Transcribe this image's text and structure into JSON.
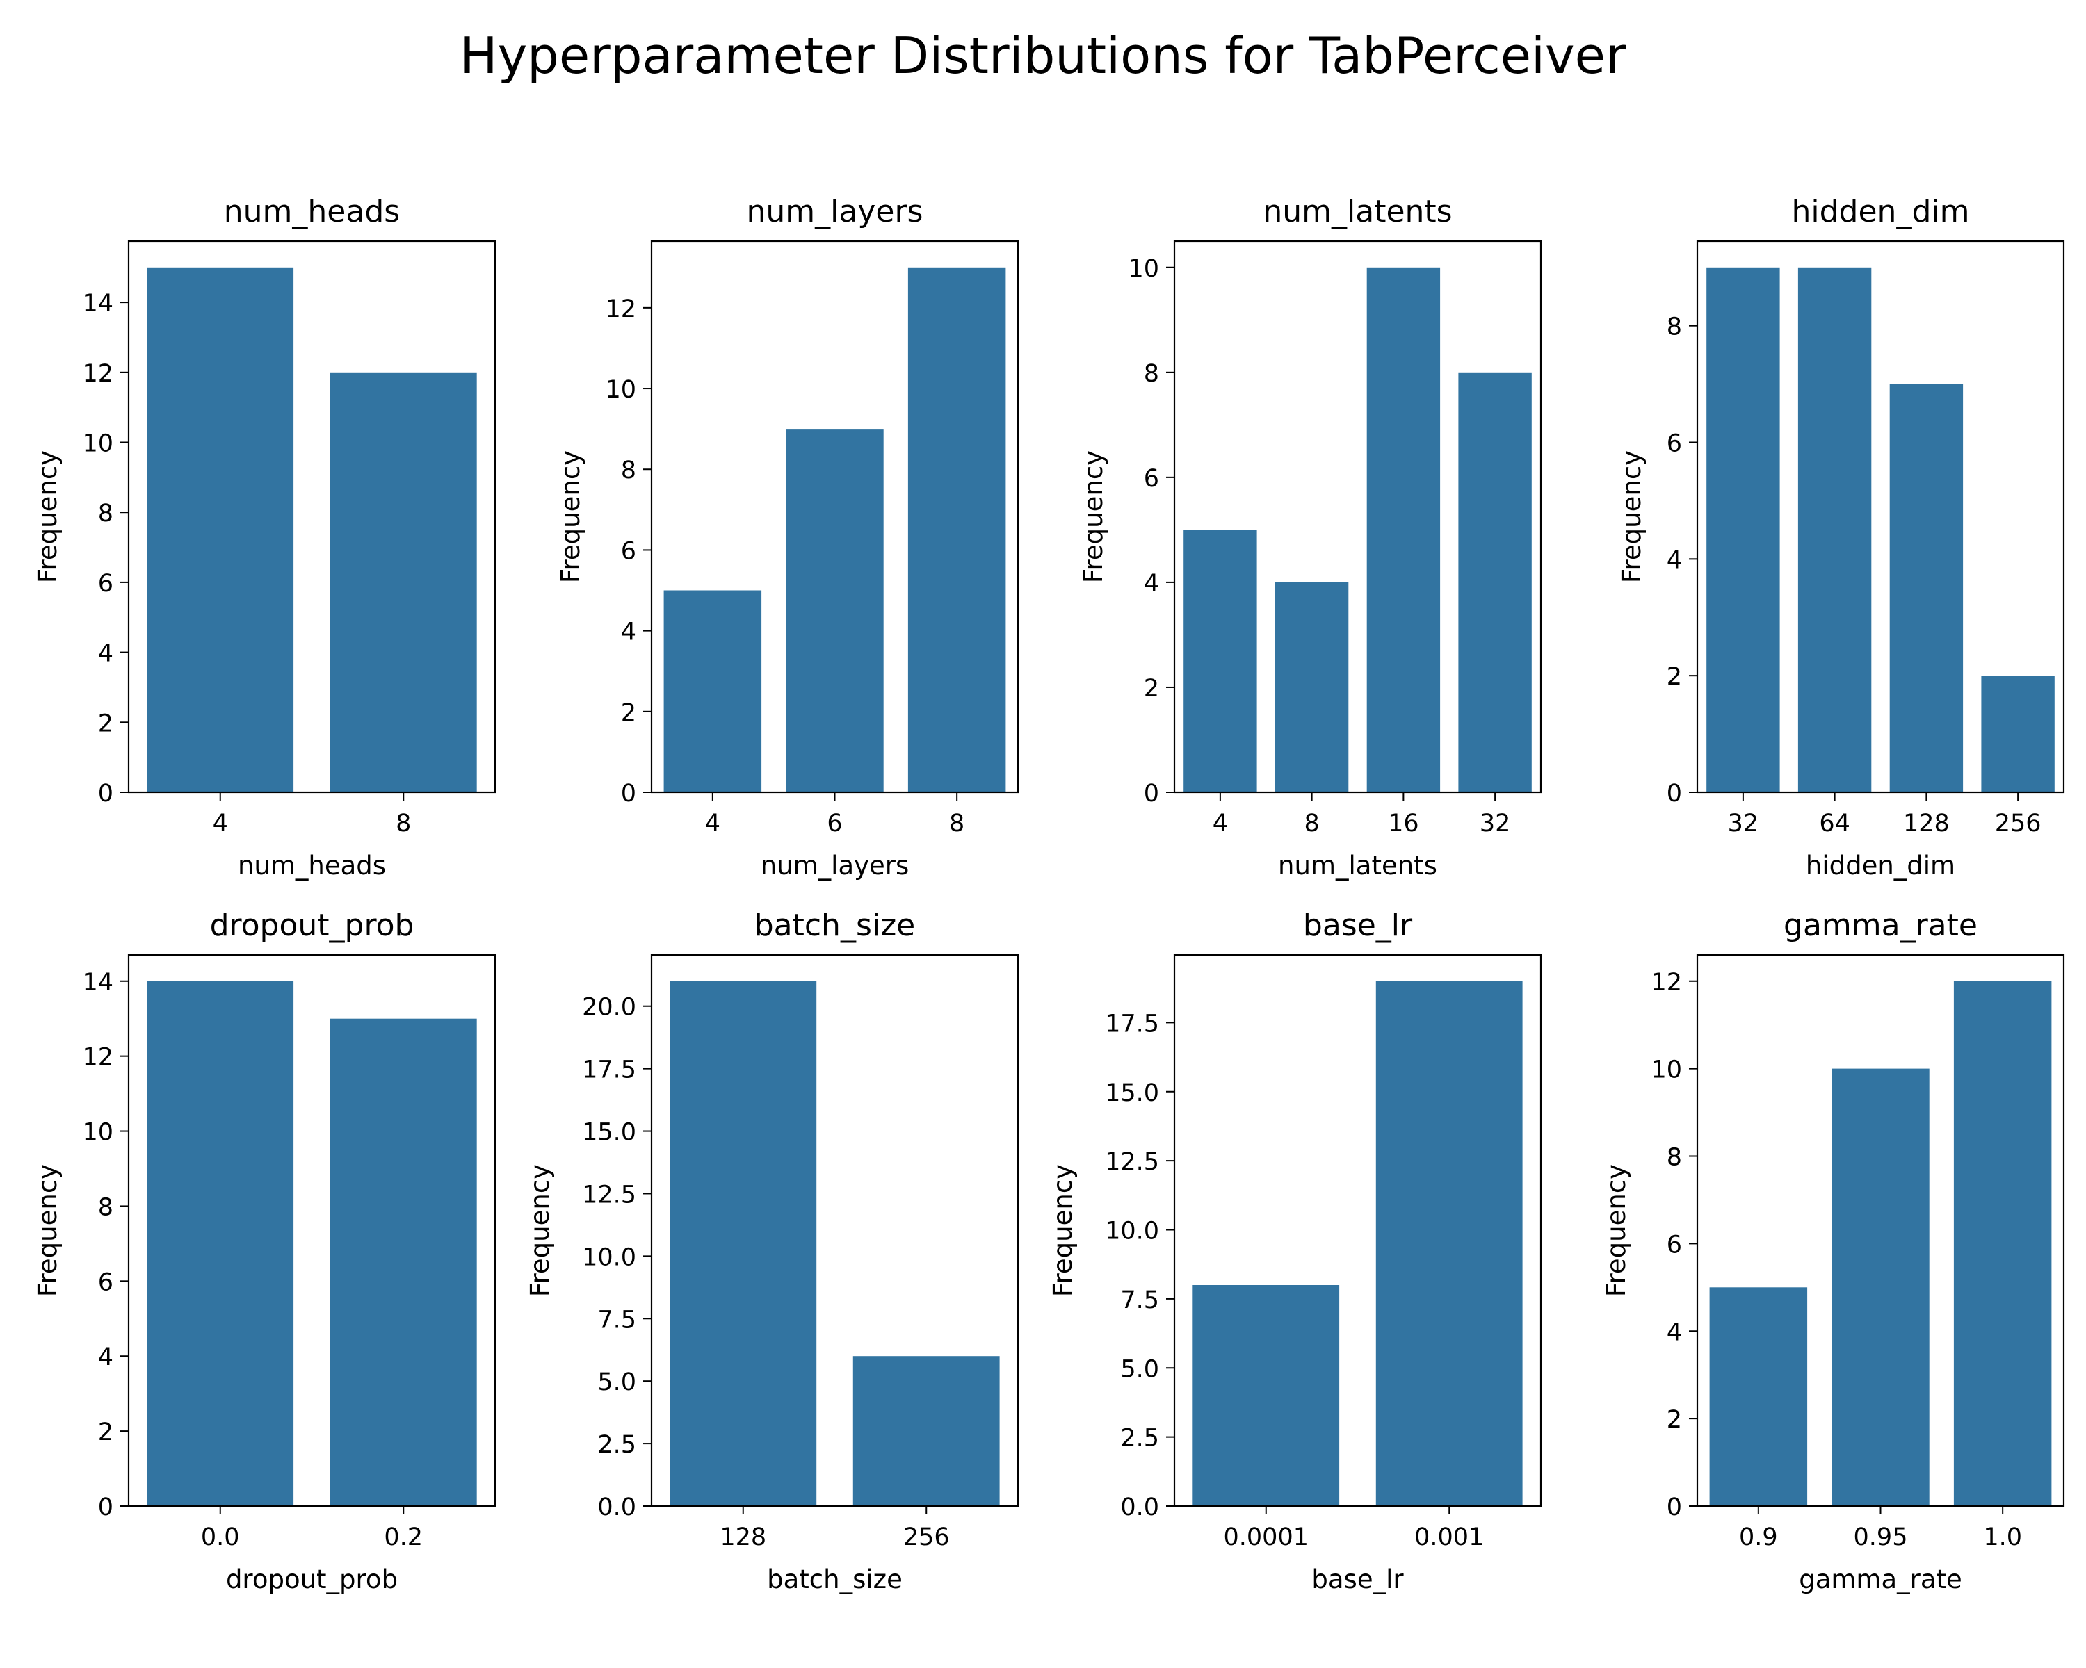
{
  "figure": {
    "title": "Hyperparameter Distributions for TabPerceiver"
  },
  "chart_data": [
    {
      "type": "bar",
      "title": "num_heads",
      "xlabel": "num_heads",
      "ylabel": "Frequency",
      "categories": [
        "4",
        "8"
      ],
      "values": [
        15,
        12
      ],
      "ylim": [
        0,
        15.75
      ],
      "yticks": [
        "0",
        "2",
        "4",
        "6",
        "8",
        "10",
        "12",
        "14"
      ],
      "ytick_values": [
        0,
        2,
        4,
        6,
        8,
        10,
        12,
        14
      ],
      "color": "#3274a1"
    },
    {
      "type": "bar",
      "title": "num_layers",
      "xlabel": "num_layers",
      "ylabel": "Frequency",
      "categories": [
        "4",
        "6",
        "8"
      ],
      "values": [
        5,
        9,
        13
      ],
      "ylim": [
        0,
        13.65
      ],
      "yticks": [
        "0",
        "2",
        "4",
        "6",
        "8",
        "10",
        "12"
      ],
      "ytick_values": [
        0,
        2,
        4,
        6,
        8,
        10,
        12
      ],
      "color": "#3274a1"
    },
    {
      "type": "bar",
      "title": "num_latents",
      "xlabel": "num_latents",
      "ylabel": "Frequency",
      "categories": [
        "4",
        "8",
        "16",
        "32"
      ],
      "values": [
        5,
        4,
        10,
        8
      ],
      "ylim": [
        0,
        10.5
      ],
      "yticks": [
        "0",
        "2",
        "4",
        "6",
        "8",
        "10"
      ],
      "ytick_values": [
        0,
        2,
        4,
        6,
        8,
        10
      ],
      "color": "#3274a1"
    },
    {
      "type": "bar",
      "title": "hidden_dim",
      "xlabel": "hidden_dim",
      "ylabel": "Frequency",
      "categories": [
        "32",
        "64",
        "128",
        "256"
      ],
      "values": [
        9,
        9,
        7,
        2
      ],
      "ylim": [
        0,
        9.45
      ],
      "yticks": [
        "0",
        "2",
        "4",
        "6",
        "8"
      ],
      "ytick_values": [
        0,
        2,
        4,
        6,
        8
      ],
      "color": "#3274a1"
    },
    {
      "type": "bar",
      "title": "dropout_prob",
      "xlabel": "dropout_prob",
      "ylabel": "Frequency",
      "categories": [
        "0.0",
        "0.2"
      ],
      "values": [
        14,
        13
      ],
      "ylim": [
        0,
        14.7
      ],
      "yticks": [
        "0",
        "2",
        "4",
        "6",
        "8",
        "10",
        "12",
        "14"
      ],
      "ytick_values": [
        0,
        2,
        4,
        6,
        8,
        10,
        12,
        14
      ],
      "color": "#3274a1"
    },
    {
      "type": "bar",
      "title": "batch_size",
      "xlabel": "batch_size",
      "ylabel": "Frequency",
      "categories": [
        "128",
        "256"
      ],
      "values": [
        21,
        6
      ],
      "ylim": [
        0,
        22.05
      ],
      "yticks": [
        "0.0",
        "2.5",
        "5.0",
        "7.5",
        "10.0",
        "12.5",
        "15.0",
        "17.5",
        "20.0"
      ],
      "ytick_values": [
        0,
        2.5,
        5,
        7.5,
        10,
        12.5,
        15,
        17.5,
        20
      ],
      "color": "#3274a1"
    },
    {
      "type": "bar",
      "title": "base_lr",
      "xlabel": "base_lr",
      "ylabel": "Frequency",
      "categories": [
        "0.0001",
        "0.001"
      ],
      "values": [
        8,
        19
      ],
      "ylim": [
        0,
        19.95
      ],
      "yticks": [
        "0.0",
        "2.5",
        "5.0",
        "7.5",
        "10.0",
        "12.5",
        "15.0",
        "17.5"
      ],
      "ytick_values": [
        0,
        2.5,
        5,
        7.5,
        10,
        12.5,
        15,
        17.5
      ],
      "color": "#3274a1"
    },
    {
      "type": "bar",
      "title": "gamma_rate",
      "xlabel": "gamma_rate",
      "ylabel": "Frequency",
      "categories": [
        "0.9",
        "0.95",
        "1.0"
      ],
      "values": [
        5,
        10,
        12
      ],
      "ylim": [
        0,
        12.6
      ],
      "yticks": [
        "0",
        "2",
        "4",
        "6",
        "8",
        "10",
        "12"
      ],
      "ytick_values": [
        0,
        2,
        4,
        6,
        8,
        10,
        12
      ],
      "color": "#3274a1"
    }
  ]
}
